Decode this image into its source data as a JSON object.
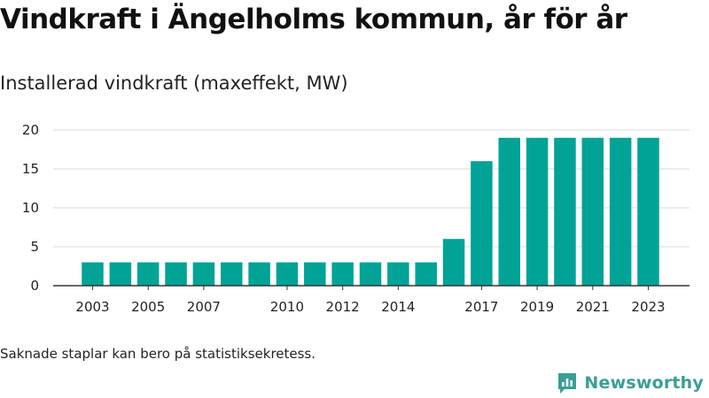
{
  "title": "Vindkraft i Ängelholms kommun, år för år",
  "subtitle": "Installerad vindkraft (maxeffekt, MW)",
  "footnote": "Saknade staplar kan bero på statistiksekretess.",
  "brand": {
    "name": "Newsworthy",
    "icon": "newsworthy-logo-icon",
    "color": "#3a9e96"
  },
  "chart_data": {
    "type": "bar",
    "categories": [
      2003,
      2004,
      2005,
      2006,
      2007,
      2008,
      2009,
      2010,
      2011,
      2012,
      2013,
      2014,
      2015,
      2016,
      2017,
      2018,
      2019,
      2020,
      2021,
      2022,
      2023
    ],
    "values": [
      3,
      3,
      3,
      3,
      3,
      3,
      3,
      3,
      3,
      3,
      3,
      3,
      3,
      6,
      16,
      19,
      19,
      19,
      19,
      19,
      19
    ],
    "x_tick_labels": [
      "2003",
      "2005",
      "2007",
      "2010",
      "2012",
      "2014",
      "2017",
      "2019",
      "2021",
      "2023"
    ],
    "y_ticks": [
      0,
      5,
      10,
      15,
      20
    ],
    "ylim": [
      0,
      20
    ],
    "grid": true,
    "bar_color": "#00a396",
    "title": "Vindkraft i Ängelholms kommun, år för år",
    "ylabel": "Installerad vindkraft (maxeffekt, MW)",
    "xlabel": ""
  }
}
